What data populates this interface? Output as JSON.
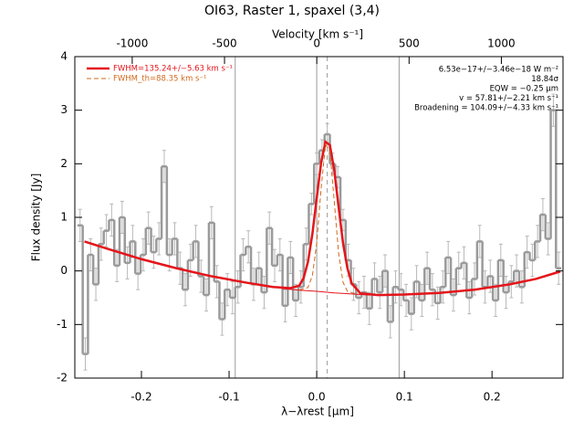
{
  "chart_data": {
    "type": "line",
    "title": "OI63, Raster 1, spaxel (3,4)",
    "xlabel": "λ−λrest [μm]",
    "ylabel": "Flux density [Jy]",
    "x2label": "Velocity [km s⁻¹]",
    "xlim": [
      -0.276,
      0.281
    ],
    "xticks": [
      -0.2,
      -0.1,
      {
        "value": 0,
        "label": "0.0"
      },
      0.1,
      0.2
    ],
    "x2lim": [
      -1311,
      1334
    ],
    "x2ticks": [
      -1000,
      -500,
      0,
      500,
      1000
    ],
    "ylim": [
      -2,
      4
    ],
    "yticks": [
      -2,
      -1,
      0,
      1,
      2,
      3,
      4
    ],
    "vlines": [
      -0.093,
      0,
      0.094
    ],
    "vline_color": "#9a9a9a",
    "dashed_vlines": [
      0.012
    ],
    "annotations": [
      "6.53e−17+/−3.46e−18 W m⁻²",
      "18.84σ",
      "EQW = −0.25 μm",
      "v = 57.81+/−2.21 km s⁻¹",
      "Broadening = 104.09+/−4.33 km s⁻¹"
    ],
    "series": [
      {
        "style": "step",
        "color": "#9a9a9a",
        "error_color": "#b8b8b8",
        "x": [
          -0.27,
          -0.264,
          -0.258,
          -0.252,
          -0.246,
          -0.24,
          -0.234,
          -0.228,
          -0.222,
          -0.216,
          -0.21,
          -0.204,
          -0.198,
          -0.192,
          -0.186,
          -0.18,
          -0.174,
          -0.168,
          -0.162,
          -0.156,
          -0.15,
          -0.144,
          -0.138,
          -0.132,
          -0.126,
          -0.12,
          -0.114,
          -0.108,
          -0.102,
          -0.096,
          -0.09,
          -0.084,
          -0.078,
          -0.072,
          -0.066,
          -0.06,
          -0.054,
          -0.048,
          -0.042,
          -0.036,
          -0.03,
          -0.024,
          -0.018,
          -0.012,
          -0.006,
          0.0,
          0.006,
          0.012,
          0.018,
          0.024,
          0.03,
          0.036,
          0.042,
          0.048,
          0.054,
          0.06,
          0.066,
          0.072,
          0.078,
          0.084,
          0.09,
          0.096,
          0.102,
          0.108,
          0.114,
          0.12,
          0.126,
          0.132,
          0.138,
          0.144,
          0.15,
          0.156,
          0.162,
          0.168,
          0.174,
          0.18,
          0.186,
          0.192,
          0.198,
          0.204,
          0.21,
          0.216,
          0.222,
          0.228,
          0.234,
          0.24,
          0.246,
          0.252,
          0.258,
          0.264,
          0.27,
          0.276
        ],
        "values": [
          0.85,
          -1.55,
          0.3,
          -0.25,
          0.5,
          0.75,
          0.95,
          0.1,
          1.0,
          0.15,
          0.55,
          -0.05,
          0.3,
          0.8,
          0.35,
          0.6,
          1.95,
          0.3,
          0.6,
          0.05,
          -0.35,
          0.2,
          0.55,
          -0.1,
          -0.45,
          0.9,
          -0.2,
          -0.9,
          -0.35,
          -0.5,
          -0.3,
          0.3,
          0.45,
          -0.25,
          0.05,
          -0.4,
          0.8,
          0.1,
          0.3,
          -0.65,
          0.25,
          -0.55,
          -0.3,
          0.5,
          1.25,
          2.0,
          2.25,
          2.55,
          2.0,
          1.75,
          0.95,
          0.2,
          -0.25,
          -0.5,
          -0.4,
          -0.7,
          -0.15,
          -0.4,
          0.0,
          -0.95,
          -0.3,
          -0.35,
          -0.55,
          -0.8,
          -0.2,
          -0.55,
          0.05,
          -0.35,
          -0.6,
          -0.3,
          0.25,
          -0.45,
          0.05,
          0.15,
          -0.5,
          -0.15,
          0.55,
          -0.3,
          -0.1,
          -0.55,
          0.2,
          -0.4,
          -0.2,
          0.0,
          -0.3,
          0.35,
          0.2,
          0.55,
          1.05,
          0.6,
          3.0,
          0.05
        ],
        "errors": [
          0.3,
          0.3,
          0.3,
          0.3,
          0.3,
          0.3,
          0.3,
          0.3,
          0.3,
          0.3,
          0.3,
          0.3,
          0.3,
          0.3,
          0.3,
          0.3,
          0.3,
          0.3,
          0.3,
          0.3,
          0.3,
          0.3,
          0.3,
          0.3,
          0.3,
          0.3,
          0.3,
          0.3,
          0.3,
          0.3,
          0.3,
          0.3,
          0.3,
          0.3,
          0.3,
          0.3,
          0.3,
          0.3,
          0.3,
          0.3,
          0.3,
          0.3,
          0.3,
          0.3,
          0.2,
          0.2,
          0.2,
          0.2,
          0.2,
          0.2,
          0.2,
          0.3,
          0.3,
          0.3,
          0.3,
          0.3,
          0.3,
          0.3,
          0.3,
          0.3,
          0.3,
          0.3,
          0.3,
          0.3,
          0.3,
          0.3,
          0.3,
          0.3,
          0.3,
          0.3,
          0.3,
          0.3,
          0.3,
          0.3,
          0.3,
          0.3,
          0.3,
          0.3,
          0.3,
          0.3,
          0.3,
          0.3,
          0.3,
          0.3,
          0.3,
          0.3,
          0.3,
          0.3,
          0.3,
          0.3,
          0.3,
          0.3
        ]
      },
      {
        "style": "line",
        "name": "FWHM=135.24+/−5.63 km s⁻¹",
        "color": "#e4151b",
        "x": [
          -0.265,
          -0.24,
          -0.2,
          -0.16,
          -0.12,
          -0.08,
          -0.05,
          -0.03,
          -0.02,
          -0.015,
          -0.01,
          -0.005,
          0,
          0.005,
          0.01,
          0.015,
          0.02,
          0.025,
          0.03,
          0.035,
          0.04,
          0.05,
          0.07,
          0.1,
          0.14,
          0.18,
          0.22,
          0.25,
          0.278
        ],
        "values": [
          0.55,
          0.42,
          0.22,
          0.05,
          -0.1,
          -0.22,
          -0.3,
          -0.32,
          -0.275,
          -0.135,
          0.17,
          0.685,
          1.36,
          2.02,
          2.41,
          2.35,
          1.88,
          1.19,
          0.52,
          0.05,
          -0.235,
          -0.42,
          -0.45,
          -0.44,
          -0.41,
          -0.35,
          -0.25,
          -0.15,
          -0.01
        ]
      },
      {
        "style": "dashed",
        "name": "FWHM_th=88.35 km s⁻¹",
        "color": "#d2691e",
        "x": [
          -0.02,
          -0.01,
          -0.005,
          0,
          0.005,
          0.01,
          0.015,
          0.02,
          0.025,
          0.03,
          0.035,
          0.045
        ],
        "values": [
          -0.36,
          -0.31,
          -0.09,
          0.52,
          1.54,
          2.36,
          2.24,
          1.3,
          0.33,
          -0.21,
          -0.38,
          -0.43
        ]
      },
      {
        "style": "thin",
        "color": "#e4151b",
        "x": [
          -0.04,
          -0.02,
          0,
          0.02,
          0.04,
          0.06
        ],
        "values": [
          -0.33,
          -0.36,
          -0.38,
          -0.41,
          -0.43,
          -0.45
        ]
      }
    ]
  }
}
